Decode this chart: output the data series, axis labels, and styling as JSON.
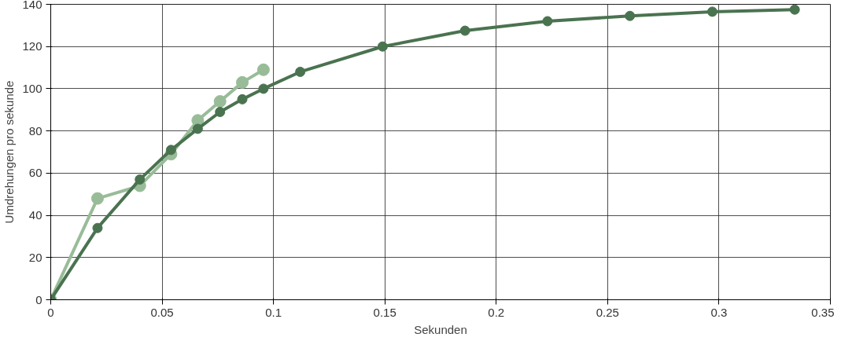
{
  "chart_data": {
    "type": "line",
    "xlabel": "Sekunden",
    "ylabel": "Umdrehungen pro sekunde",
    "xlim": [
      0,
      0.35
    ],
    "ylim": [
      0,
      140
    ],
    "xticks": [
      0,
      0.05,
      0.1,
      0.15,
      0.2,
      0.25,
      0.3,
      0.35
    ],
    "yticks": [
      0,
      20,
      40,
      60,
      80,
      100,
      120,
      140
    ],
    "grid": true,
    "marker": "circle",
    "line_style": "solid",
    "series": [
      {
        "color": "#98bc98",
        "x": [
          0,
          0.021,
          0.04,
          0.054,
          0.066,
          0.076,
          0.086,
          0.0955
        ],
        "values": [
          0,
          48,
          54,
          69,
          85,
          94,
          103,
          109
        ]
      },
      {
        "color": "#4a7350",
        "x": [
          0,
          0.021,
          0.04,
          0.054,
          0.066,
          0.076,
          0.086,
          0.0955,
          0.112,
          0.149,
          0.186,
          0.223,
          0.26,
          0.297,
          0.334
        ],
        "values": [
          0,
          34,
          57,
          71,
          81,
          89,
          95,
          100,
          108,
          120,
          127.5,
          132,
          134.5,
          136.5,
          137.5
        ]
      }
    ]
  }
}
